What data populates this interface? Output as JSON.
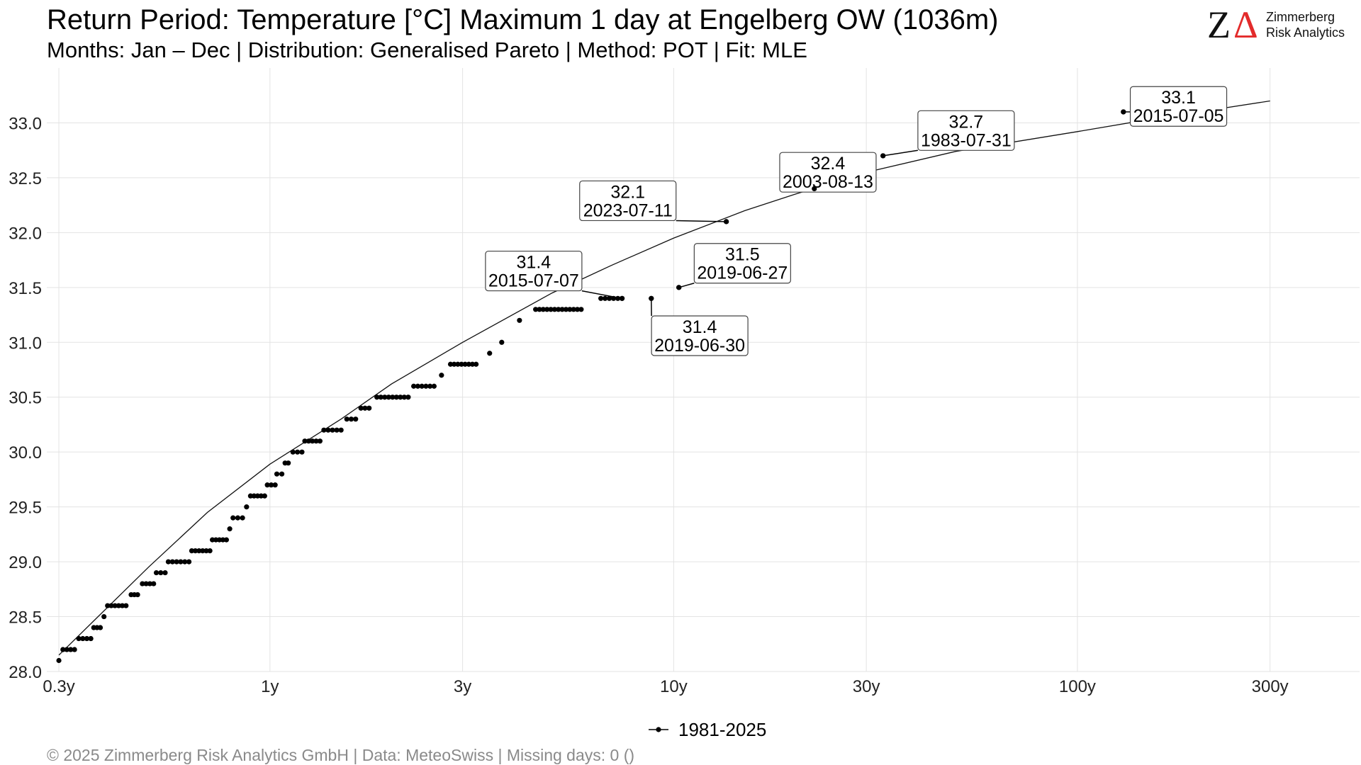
{
  "header": {
    "title": "Return Period: Temperature [°C] Maximum 1 day at Engelberg  OW (1036m)",
    "subtitle": "Months: Jan – Dec | Distribution: Generalised Pareto | Method: POT | Fit: MLE"
  },
  "logo": {
    "mark_z": "Z",
    "mark_a": "Δ",
    "line1": "Zimmerberg",
    "line2": "Risk Analytics",
    "accent_color": "#e32b2b"
  },
  "footer": "©  2025 Zimmerberg Risk Analytics GmbH | Data: MeteoSwiss | Missing days: 0 ()",
  "legend": {
    "entry": "1981-2025",
    "placement": "bottom-center"
  },
  "chart_data": {
    "type": "scatter",
    "x_scale": "log",
    "xlim": [
      0.28,
      500
    ],
    "ylim": [
      28.0,
      33.5
    ],
    "x_ticks": [
      {
        "value": 0.3,
        "label": "0.3y"
      },
      {
        "value": 1,
        "label": "1y"
      },
      {
        "value": 3,
        "label": "3y"
      },
      {
        "value": 10,
        "label": "10y"
      },
      {
        "value": 30,
        "label": "30y"
      },
      {
        "value": 100,
        "label": "100y"
      },
      {
        "value": 300,
        "label": "300y"
      }
    ],
    "y_ticks": [
      {
        "value": 28.0,
        "label": "28.0"
      },
      {
        "value": 28.5,
        "label": "28.5"
      },
      {
        "value": 29.0,
        "label": "29.0"
      },
      {
        "value": 29.5,
        "label": "29.5"
      },
      {
        "value": 30.0,
        "label": "30.0"
      },
      {
        "value": 30.5,
        "label": "30.5"
      },
      {
        "value": 31.0,
        "label": "31.0"
      },
      {
        "value": 31.5,
        "label": "31.5"
      },
      {
        "value": 32.0,
        "label": "32.0"
      },
      {
        "value": 32.5,
        "label": "32.5"
      },
      {
        "value": 33.0,
        "label": "33.0"
      }
    ],
    "grid": true,
    "series": [
      {
        "name": "1981-2025",
        "runs": [
          {
            "y": 28.1,
            "x_from": 0.3,
            "x_to": 0.3
          },
          {
            "y": 28.2,
            "x_from": 0.307,
            "x_to": 0.328
          },
          {
            "y": 28.3,
            "x_from": 0.336,
            "x_to": 0.36
          },
          {
            "y": 28.4,
            "x_from": 0.366,
            "x_to": 0.38
          },
          {
            "y": 28.5,
            "x_from": 0.388,
            "x_to": 0.388
          },
          {
            "y": 28.6,
            "x_from": 0.396,
            "x_to": 0.44
          },
          {
            "y": 28.7,
            "x_from": 0.453,
            "x_to": 0.47
          },
          {
            "y": 28.8,
            "x_from": 0.483,
            "x_to": 0.515
          },
          {
            "y": 28.9,
            "x_from": 0.523,
            "x_to": 0.55
          },
          {
            "y": 29.0,
            "x_from": 0.56,
            "x_to": 0.63
          },
          {
            "y": 29.1,
            "x_from": 0.64,
            "x_to": 0.71
          },
          {
            "y": 29.2,
            "x_from": 0.72,
            "x_to": 0.78
          },
          {
            "y": 29.3,
            "x_from": 0.795,
            "x_to": 0.795
          },
          {
            "y": 29.4,
            "x_from": 0.81,
            "x_to": 0.855
          },
          {
            "y": 29.5,
            "x_from": 0.875,
            "x_to": 0.875
          },
          {
            "y": 29.6,
            "x_from": 0.895,
            "x_to": 0.97
          },
          {
            "y": 29.7,
            "x_from": 0.985,
            "x_to": 1.03
          },
          {
            "y": 29.8,
            "x_from": 1.04,
            "x_to": 1.07
          },
          {
            "y": 29.9,
            "x_from": 1.09,
            "x_to": 1.11
          },
          {
            "y": 30.0,
            "x_from": 1.14,
            "x_to": 1.2
          },
          {
            "y": 30.1,
            "x_from": 1.22,
            "x_to": 1.33
          },
          {
            "y": 30.2,
            "x_from": 1.36,
            "x_to": 1.5
          },
          {
            "y": 30.3,
            "x_from": 1.55,
            "x_to": 1.63
          },
          {
            "y": 30.4,
            "x_from": 1.68,
            "x_to": 1.76
          },
          {
            "y": 30.5,
            "x_from": 1.84,
            "x_to": 2.2
          },
          {
            "y": 30.6,
            "x_from": 2.27,
            "x_to": 2.55
          },
          {
            "y": 30.7,
            "x_from": 2.66,
            "x_to": 2.66
          },
          {
            "y": 30.8,
            "x_from": 2.8,
            "x_to": 3.24
          },
          {
            "y": 30.9,
            "x_from": 3.5,
            "x_to": 3.5
          },
          {
            "y": 31.0,
            "x_from": 3.75,
            "x_to": 3.75
          },
          {
            "y": 31.2,
            "x_from": 4.15,
            "x_to": 4.15
          },
          {
            "y": 31.3,
            "x_from": 4.55,
            "x_to": 5.9
          },
          {
            "y": 31.4,
            "x_from": 6.6,
            "x_to": 7.45
          }
        ],
        "points": [
          {
            "x": 8.8,
            "y": 31.4
          },
          {
            "x": 10.3,
            "y": 31.5
          },
          {
            "x": 13.5,
            "y": 32.1
          },
          {
            "x": 33.0,
            "y": 32.7
          },
          {
            "x": 130.0,
            "y": 33.1
          }
        ]
      }
    ],
    "fit_curve": {
      "points": [
        {
          "x": 0.3,
          "y": 28.15
        },
        {
          "x": 0.5,
          "y": 28.95
        },
        {
          "x": 0.7,
          "y": 29.45
        },
        {
          "x": 1.0,
          "y": 29.89
        },
        {
          "x": 1.5,
          "y": 30.3
        },
        {
          "x": 2.0,
          "y": 30.62
        },
        {
          "x": 3.0,
          "y": 31.0
        },
        {
          "x": 5.0,
          "y": 31.45
        },
        {
          "x": 7.0,
          "y": 31.7
        },
        {
          "x": 10.0,
          "y": 31.95
        },
        {
          "x": 15.0,
          "y": 32.2
        },
        {
          "x": 20.0,
          "y": 32.35
        },
        {
          "x": 30.0,
          "y": 32.55
        },
        {
          "x": 50.0,
          "y": 32.74
        },
        {
          "x": 100.0,
          "y": 32.92
        },
        {
          "x": 150.0,
          "y": 33.03
        },
        {
          "x": 200.0,
          "y": 33.1
        },
        {
          "x": 300.0,
          "y": 33.2
        }
      ]
    },
    "annotations": [
      {
        "value": "31.4",
        "date": "2015-07-07",
        "x": 7.45,
        "y": 31.4,
        "label_x": 4.5,
        "label_y": 31.65
      },
      {
        "value": "31.4",
        "date": "2019-06-30",
        "x": 8.8,
        "y": 31.4,
        "label_x": 11.6,
        "label_y": 31.06
      },
      {
        "value": "31.5",
        "date": "2019-06-27",
        "x": 10.3,
        "y": 31.5,
        "label_x": 14.8,
        "label_y": 31.72
      },
      {
        "value": "32.1",
        "date": "2023-07-11",
        "x": 13.5,
        "y": 32.1,
        "label_x": 7.7,
        "label_y": 32.29
      },
      {
        "value": "32.4",
        "date": "2003-08-13",
        "x": 22.3,
        "y": 32.4,
        "label_x": 24.1,
        "label_y": 32.55
      },
      {
        "value": "32.7",
        "date": "1983-07-31",
        "x": 33.0,
        "y": 32.7,
        "label_x": 53.0,
        "label_y": 32.93
      },
      {
        "value": "33.1",
        "date": "2015-07-05",
        "x": 130.0,
        "y": 33.1,
        "label_x": 178.0,
        "label_y": 33.15
      }
    ]
  }
}
